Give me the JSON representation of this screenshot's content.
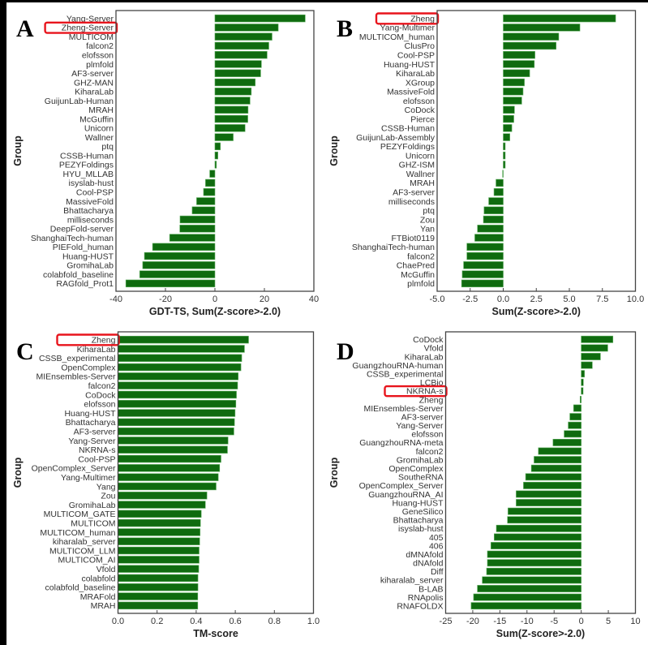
{
  "figure": {
    "highlight_color": "#e8141c",
    "bar_color": "#0f6b0f",
    "bar_edge_color": "#5fae5f",
    "frame_color": "#444444"
  },
  "chart_data": [
    {
      "panel": "A",
      "type": "bar",
      "orientation": "horizontal",
      "title": "",
      "xlabel": "GDT-TS, Sum(Z-score>-2.0)",
      "ylabel": "Group",
      "xlim": [
        -40,
        40
      ],
      "xticks": [
        -40,
        -20,
        0,
        20,
        40
      ],
      "xtick_labels": [
        "-40",
        "-20",
        "0",
        "20",
        "40"
      ],
      "highlighted": "Zheng-Server",
      "categories": [
        "Yang-Server",
        "Zheng-Server",
        "MULTICOM",
        "falcon2",
        "elofsson",
        "plmfold",
        "AF3-server",
        "GHZ-MAN",
        "KiharaLab",
        "GuijunLab-Human",
        "MRAH",
        "McGuffin",
        "Unicorn",
        "Wallner",
        "ptq",
        "CSSB-Human",
        "PEZYFoldings",
        "HYU_MLLAB",
        "isyslab-hust",
        "Cool-PSP",
        "MassiveFold",
        "Bhattacharya",
        "milliseconds",
        "DeepFold-server",
        "ShanghaiTech-human",
        "PIEFold_human",
        "Huang-HUST",
        "GromihaLab",
        "colabfold_baseline",
        "RAGfold_Prot1"
      ],
      "values": [
        36.5,
        25.6,
        23.1,
        21.8,
        21.1,
        18.8,
        18.5,
        16.3,
        14.7,
        14.2,
        13.4,
        13.3,
        12.2,
        7.4,
        2.2,
        1.2,
        0.6,
        -2.1,
        -3.8,
        -4.6,
        -7.4,
        -9.2,
        -14.1,
        -14.2,
        -18.3,
        -25.2,
        -28.5,
        -29.2,
        -30.4,
        -36.0
      ]
    },
    {
      "panel": "B",
      "type": "bar",
      "orientation": "horizontal",
      "title": "",
      "xlabel": "Sum(Z-score>-2.0)",
      "ylabel": "Group",
      "xlim": [
        -5,
        10
      ],
      "xticks": [
        -5,
        -2.5,
        0,
        2.5,
        5,
        7.5,
        10
      ],
      "xtick_labels": [
        "-5.0",
        "-2.5",
        "0.0",
        "2.5",
        "5.0",
        "7.5",
        "10.0"
      ],
      "highlighted": "Zheng",
      "categories": [
        "Zheng",
        "Yang-Multimer",
        "MULTICOM_human",
        "ClusPro",
        "Cool-PSP",
        "Huang-HUST",
        "KiharaLab",
        "XGroup",
        "MassiveFold",
        "elofsson",
        "CoDock",
        "Pierce",
        "CSSB-Human",
        "GuijunLab-Assembly",
        "PEZYFoldings",
        "Unicorn",
        "GHZ-ISM",
        "Wallner",
        "MRAH",
        "AF3-server",
        "milliseconds",
        "ptq",
        "Zou",
        "Yan",
        "FTBiot0119",
        "ShanghaiTech-human",
        "falcon2",
        "ChaePred",
        "McGuffin",
        "plmfold"
      ],
      "values": [
        8.5,
        5.8,
        4.2,
        4.0,
        2.4,
        2.35,
        2.0,
        1.6,
        1.5,
        1.4,
        0.85,
        0.8,
        0.65,
        0.5,
        0.15,
        0.15,
        0.15,
        -0.05,
        -0.55,
        -0.7,
        -1.1,
        -1.45,
        -1.5,
        -1.95,
        -2.15,
        -2.75,
        -2.75,
        -3.0,
        -3.1,
        -3.15
      ]
    },
    {
      "panel": "C",
      "type": "bar",
      "orientation": "horizontal",
      "title": "",
      "xlabel": "TM-score",
      "ylabel": "Group",
      "xlim": [
        0,
        1
      ],
      "xticks": [
        0,
        0.2,
        0.4,
        0.6,
        0.8,
        1.0
      ],
      "xtick_labels": [
        "0.0",
        "0.2",
        "0.4",
        "0.6",
        "0.8",
        "1.0"
      ],
      "highlighted": "Zheng",
      "categories": [
        "Zheng",
        "KiharaLab",
        "CSSB_experimental",
        "OpenComplex",
        "MIEnsembles-Server",
        "falcon2",
        "CoDock",
        "elofsson",
        "Huang-HUST",
        "Bhattacharya",
        "AF3-server",
        "Yang-Server",
        "NKRNA-s",
        "Cool-PSP",
        "OpenComplex_Server",
        "Yang-Multimer",
        "Yang",
        "Zou",
        "GromihaLab",
        "MULTICOM_GATE",
        "MULTICOM",
        "MULTICOM_human",
        "kiharalab_server",
        "MULTICOM_LLM",
        "MULTICOM_AI",
        "Vfold",
        "colabfold",
        "colabfold_baseline",
        "MRAFold",
        "MRAH"
      ],
      "values": [
        0.668,
        0.647,
        0.633,
        0.629,
        0.615,
        0.612,
        0.606,
        0.603,
        0.599,
        0.596,
        0.593,
        0.563,
        0.56,
        0.527,
        0.52,
        0.513,
        0.502,
        0.455,
        0.447,
        0.426,
        0.422,
        0.42,
        0.418,
        0.415,
        0.415,
        0.413,
        0.409,
        0.409,
        0.408,
        0.408
      ]
    },
    {
      "panel": "D",
      "type": "bar",
      "orientation": "horizontal",
      "title": "",
      "xlabel": "Sum(Z-score>-2.0)",
      "ylabel": "Group",
      "xlim": [
        -25,
        10
      ],
      "xticks": [
        -25,
        -20,
        -15,
        -10,
        -5,
        0,
        5,
        10
      ],
      "xtick_labels": [
        "-25",
        "-20",
        "-15",
        "-10",
        "-5",
        "0",
        "5",
        "10"
      ],
      "highlighted": "NKRNA-s",
      "categories": [
        "CoDock",
        "Vfold",
        "KiharaLab",
        "GuangzhouRNA-human",
        "CSSB_experimental",
        "LCBio",
        "NKRNA-s",
        "Zheng",
        "MIEnsembles-Server",
        "AF3-server",
        "Yang-Server",
        "elofsson",
        "GuangzhouRNA-meta",
        "falcon2",
        "GromihaLab",
        "OpenComplex",
        "SoutheRNA",
        "OpenComplex_Server",
        "GuangzhouRNA_AI",
        "Huang-HUST",
        "GeneSilico",
        "Bhattacharya",
        "isyslab-hust",
        "405",
        "406",
        "dMNAfold",
        "dNAfold",
        "Diff",
        "kiharalab_server",
        "B-LAB",
        "RNApolis",
        "RNAFOLDX"
      ],
      "values": [
        5.85,
        4.9,
        3.55,
        2.05,
        0.6,
        0.4,
        0.35,
        -0.2,
        -1.4,
        -2.1,
        -2.4,
        -3.15,
        -5.2,
        -7.9,
        -8.7,
        -9.2,
        -10.25,
        -10.65,
        -12.0,
        -12.0,
        -13.5,
        -13.6,
        -15.65,
        -16.05,
        -16.65,
        -17.3,
        -17.3,
        -17.45,
        -18.25,
        -19.15,
        -19.85,
        -20.3
      ]
    }
  ]
}
